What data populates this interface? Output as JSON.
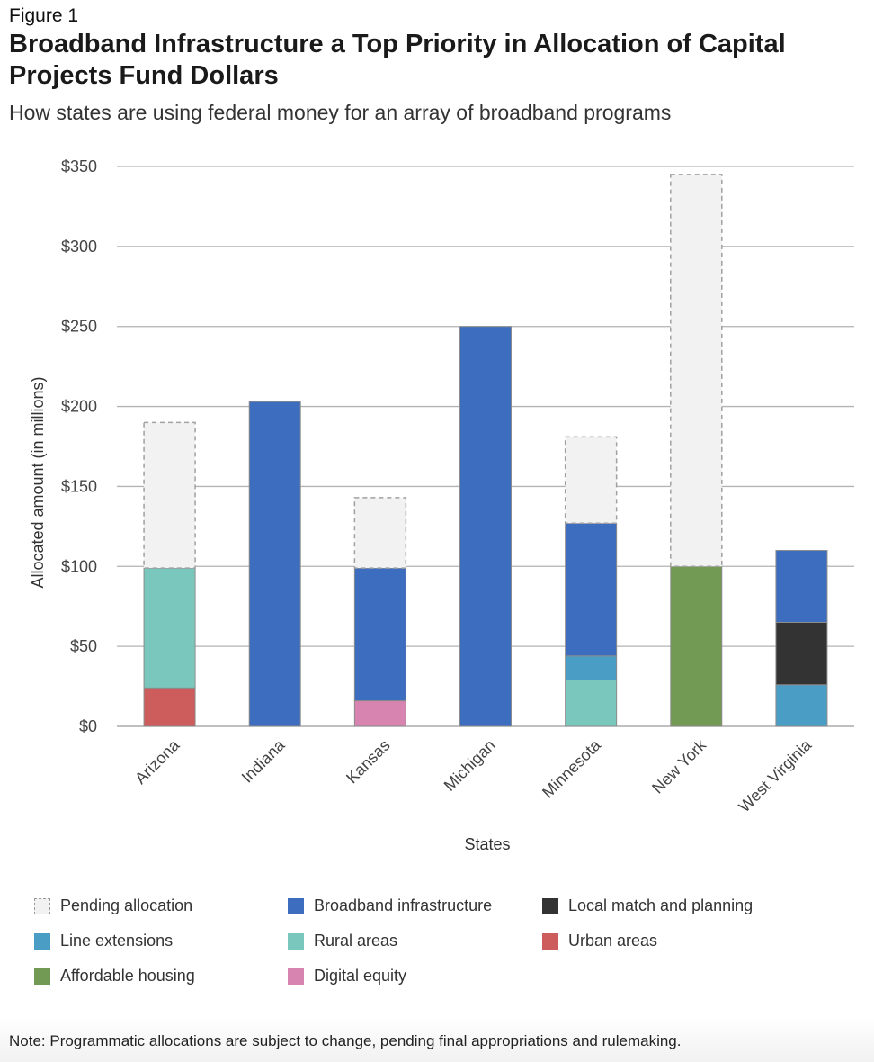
{
  "figure_label": "Figure 1",
  "title": "Broadband Infrastructure a Top Priority in Allocation of Capital Projects Fund Dollars",
  "subtitle": "How states are using federal money for an array of broadband programs",
  "note": "Note: Programmatic allocations are subject to change, pending final appropriations and rulemaking.",
  "colors": {
    "pending": "#f2f2f2",
    "broadband": "#3d6dbf",
    "local_match": "#333333",
    "line_extensions": "#4a9ec5",
    "rural": "#7ac7bd",
    "urban": "#cd5c5c",
    "affordable_housing": "#739a55",
    "digital_equity": "#d785b0"
  },
  "legend": [
    {
      "label": "Pending allocation",
      "key": "pending"
    },
    {
      "label": "Broadband infrastructure",
      "key": "broadband"
    },
    {
      "label": "Local match and planning",
      "key": "local_match"
    },
    {
      "label": "Line extensions",
      "key": "line_extensions"
    },
    {
      "label": "Rural areas",
      "key": "rural"
    },
    {
      "label": "Urban areas",
      "key": "urban"
    },
    {
      "label": "Affordable housing",
      "key": "affordable_housing"
    },
    {
      "label": "Digital equity",
      "key": "digital_equity"
    }
  ],
  "chart_data": {
    "type": "bar",
    "stacked": true,
    "categories": [
      "Arizona",
      "Indiana",
      "Kansas",
      "Michigan",
      "Minnesota",
      "New York",
      "West Virginia"
    ],
    "xlabel": "States",
    "ylabel": "Allocated amount (in millions)",
    "ylim": [
      0,
      350
    ],
    "yticks": [
      0,
      50,
      100,
      150,
      200,
      250,
      300,
      350
    ],
    "ytick_labels": [
      "$0",
      "$50",
      "$100",
      "$150",
      "$200",
      "$250",
      "$300",
      "$350"
    ],
    "grid": true,
    "legend_position": "bottom",
    "series": [
      {
        "name": "Urban areas",
        "key": "urban",
        "values": [
          24,
          0,
          0,
          0,
          0,
          0,
          0
        ]
      },
      {
        "name": "Digital equity",
        "key": "digital_equity",
        "values": [
          0,
          0,
          16,
          0,
          0,
          0,
          0
        ]
      },
      {
        "name": "Rural areas",
        "key": "rural",
        "values": [
          75,
          0,
          0,
          0,
          29,
          0,
          0
        ]
      },
      {
        "name": "Line extensions",
        "key": "line_extensions",
        "values": [
          0,
          0,
          0,
          0,
          15,
          0,
          26
        ]
      },
      {
        "name": "Affordable housing",
        "key": "affordable_housing",
        "values": [
          0,
          0,
          0,
          0,
          0,
          100,
          0
        ]
      },
      {
        "name": "Local match and planning",
        "key": "local_match",
        "values": [
          0,
          0,
          0,
          0,
          0,
          0,
          39
        ]
      },
      {
        "name": "Broadband infrastructure",
        "key": "broadband",
        "values": [
          0,
          203,
          83,
          250,
          83,
          0,
          45
        ]
      },
      {
        "name": "Pending allocation",
        "key": "pending",
        "values": [
          91,
          0,
          44,
          0,
          54,
          245,
          0
        ]
      }
    ]
  }
}
